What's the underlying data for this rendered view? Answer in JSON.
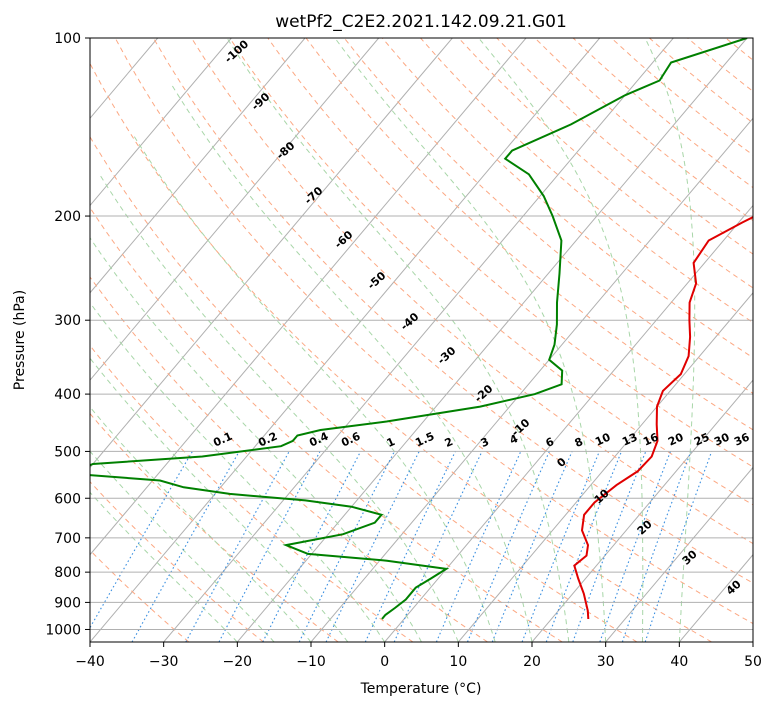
{
  "chart_data": {
    "type": "line",
    "title": "wetPf2_C2E2.2021.142.09.21.G01",
    "xlabel": "Temperature (°C)",
    "ylabel": "Pressure (hPa)",
    "xlim": [
      -40,
      50
    ],
    "ylim": [
      1050,
      100
    ],
    "y_scale": "log",
    "grid": true,
    "x_ticks": [
      -40,
      -30,
      -20,
      -10,
      0,
      10,
      20,
      30,
      40,
      50
    ],
    "x_tick_labels": [
      "−40",
      "−30",
      "−20",
      "−10",
      "0",
      "10",
      "20",
      "30",
      "40",
      "50"
    ],
    "y_ticks": [
      100,
      200,
      300,
      400,
      500,
      600,
      700,
      800,
      900,
      1000
    ],
    "y_tick_labels": [
      "100",
      "200",
      "300",
      "400",
      "500",
      "600",
      "700",
      "800",
      "900",
      "1000"
    ],
    "series": [
      {
        "color": "#e00000",
        "points": [
          [
            13.5,
            100
          ],
          [
            12.0,
            110
          ],
          [
            9.0,
            120
          ],
          [
            8.3,
            130
          ],
          [
            8.5,
            145
          ],
          [
            8.0,
            160
          ],
          [
            6.5,
            175
          ],
          [
            3.5,
            190
          ],
          [
            0.5,
            205
          ],
          [
            -2.0,
            220
          ],
          [
            -1.5,
            240
          ],
          [
            1.2,
            260
          ],
          [
            2.5,
            280
          ],
          [
            4.5,
            300
          ],
          [
            6.5,
            320
          ],
          [
            8.5,
            345
          ],
          [
            9.5,
            370
          ],
          [
            9.0,
            395
          ],
          [
            10.0,
            420
          ],
          [
            12.0,
            450
          ],
          [
            14.0,
            480
          ],
          [
            15.0,
            510
          ],
          [
            14.8,
            540
          ],
          [
            13.5,
            570
          ],
          [
            12.5,
            610
          ],
          [
            12.5,
            640
          ],
          [
            14.0,
            680
          ],
          [
            16.5,
            720
          ],
          [
            17.5,
            750
          ],
          [
            17.0,
            780
          ],
          [
            19.0,
            820
          ],
          [
            21.5,
            870
          ],
          [
            24.0,
            930
          ],
          [
            25.0,
            960
          ]
        ]
      },
      {
        "color": "#008000",
        "points": [
          [
            -20.0,
            100
          ],
          [
            -27.5,
            110
          ],
          [
            -27.0,
            118
          ],
          [
            -30.0,
            125
          ],
          [
            -34.0,
            140
          ],
          [
            -39.0,
            155
          ],
          [
            -39.0,
            160
          ],
          [
            -34.0,
            170
          ],
          [
            -29.5,
            185
          ],
          [
            -26.0,
            200
          ],
          [
            -22.0,
            220
          ],
          [
            -18.5,
            250
          ],
          [
            -15.5,
            280
          ],
          [
            -13.0,
            305
          ],
          [
            -11.0,
            330
          ],
          [
            -10.0,
            350
          ],
          [
            -7.0,
            365
          ],
          [
            -5.5,
            385
          ],
          [
            -8.0,
            400
          ],
          [
            -14.0,
            420
          ],
          [
            -25.0,
            445
          ],
          [
            -33.0,
            460
          ],
          [
            -35.5,
            470
          ],
          [
            -35.5,
            480
          ],
          [
            -36.5,
            490
          ],
          [
            -46.0,
            510
          ],
          [
            -60.0,
            525
          ],
          [
            -62.0,
            545
          ],
          [
            -49.0,
            560
          ],
          [
            -45.0,
            575
          ],
          [
            -38.0,
            590
          ],
          [
            -27.0,
            605
          ],
          [
            -20.0,
            620
          ],
          [
            -15.0,
            640
          ],
          [
            -15.0,
            660
          ],
          [
            -18.0,
            690
          ],
          [
            -24.5,
            720
          ],
          [
            -20.5,
            745
          ],
          [
            -9.0,
            765
          ],
          [
            0.0,
            790
          ],
          [
            -1.0,
            820
          ],
          [
            -2.0,
            850
          ],
          [
            -2.0,
            890
          ],
          [
            -2.5,
            920
          ],
          [
            -3.0,
            945
          ],
          [
            -3.0,
            960
          ]
        ]
      }
    ],
    "dry_adiabat_labels": [
      "-100",
      "-90",
      "-80",
      "-70",
      "-60",
      "-50",
      "-40",
      "-30",
      "-20",
      "-10",
      "0",
      "10",
      "20",
      "30",
      "40"
    ],
    "mixing_ratio_labels": [
      "0.1",
      "0.2",
      "0.4",
      "0.6",
      "1",
      "1.5",
      "2",
      "3",
      "4",
      "6",
      "8",
      "10",
      "13",
      "16",
      "20",
      "25",
      "30",
      "36"
    ]
  }
}
